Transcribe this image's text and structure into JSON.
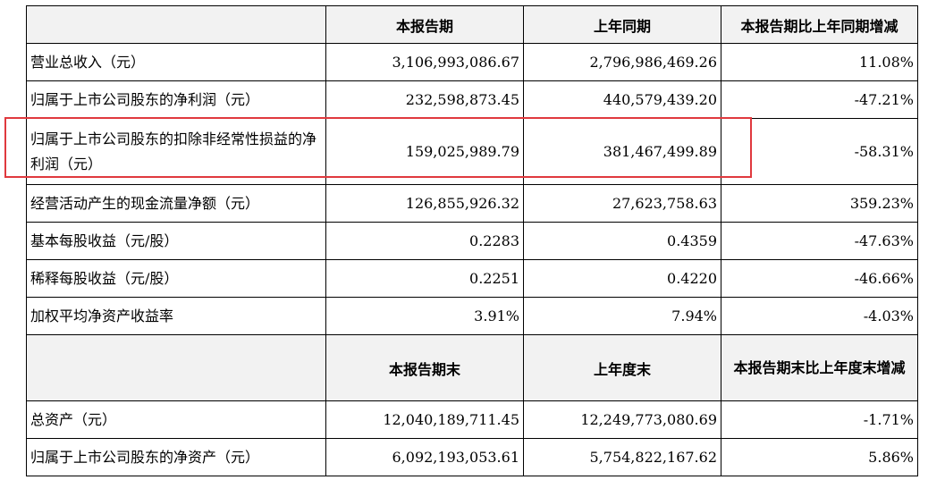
{
  "header1": {
    "col1": "",
    "col2": "本报告期",
    "col3": "上年同期",
    "col4": "本报告期比上年同期增减"
  },
  "rows1": [
    {
      "label": "营业总收入（元）",
      "current": "3,106,993,086.67",
      "prior": "2,796,986,469.26",
      "change": "11.08%"
    },
    {
      "label": "归属于上市公司股东的净利润（元）",
      "current": "232,598,873.45",
      "prior": "440,579,439.20",
      "change": "-47.21%"
    },
    {
      "label": "归属于上市公司股东的扣除非经常性损益的净利润（元）",
      "current": "159,025,989.79",
      "prior": "381,467,499.89",
      "change": "-58.31%"
    },
    {
      "label": "经营活动产生的现金流量净额（元）",
      "current": "126,855,926.32",
      "prior": "27,623,758.63",
      "change": "359.23%"
    },
    {
      "label": "基本每股收益（元/股）",
      "current": "0.2283",
      "prior": "0.4359",
      "change": "-47.63%"
    },
    {
      "label": "稀释每股收益（元/股）",
      "current": "0.2251",
      "prior": "0.4220",
      "change": "-46.66%"
    },
    {
      "label": "加权平均净资产收益率",
      "current": "3.91%",
      "prior": "7.94%",
      "change": "-4.03%"
    }
  ],
  "header2": {
    "col1": "",
    "col2": "本报告期末",
    "col3": "上年度末",
    "col4": "本报告期末比上年度末增减"
  },
  "rows2": [
    {
      "label": "总资产（元）",
      "current": "12,040,189,711.45",
      "prior": "12,249,773,080.69",
      "change": "-1.71%"
    },
    {
      "label": "归属于上市公司股东的净资产（元）",
      "current": "6,092,193,053.61",
      "prior": "5,754,822,167.62",
      "change": "5.86%"
    }
  ],
  "highlight_color": "#e0393e",
  "header_bg": "#f2f2f2"
}
